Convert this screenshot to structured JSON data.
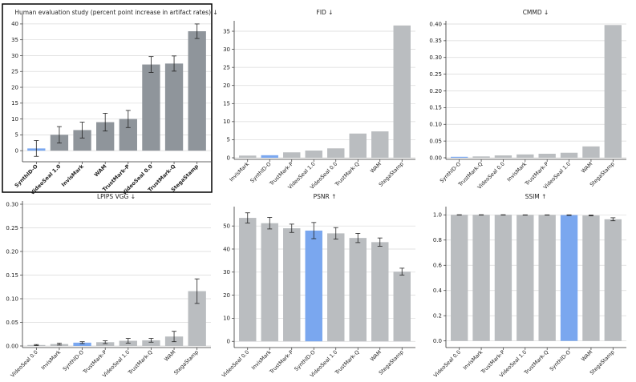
{
  "chart_data": [
    {
      "type": "bar",
      "title": "Human evaluation study (percent point increase in artifact rates) ↓",
      "categories": [
        "SynthID-O",
        "VideoSeal 1.0",
        "InvisMark",
        "WAM",
        "TrustMark-P",
        "VideoSeal 0.0",
        "TrustMark-Q",
        "StegaStamp"
      ],
      "values": [
        0.7,
        5.0,
        6.5,
        9.0,
        10.0,
        27.2,
        27.5,
        37.7
      ],
      "errors": [
        2.5,
        2.6,
        2.5,
        2.8,
        2.7,
        2.5,
        2.4,
        2.3
      ],
      "ylim": [
        -3,
        42
      ],
      "yticks": [
        0,
        5,
        10,
        15,
        20,
        25,
        30,
        35,
        40
      ],
      "highlight": "SynthID-O",
      "highlight_color": "#7aa7ef",
      "bar_color": "#8f959b",
      "grid": true,
      "framed": true,
      "bold_xticks": true
    },
    {
      "type": "bar",
      "title": "FID ↓",
      "categories": [
        "InvisMark",
        "SynthID-O",
        "TrustMark-P",
        "VideoSeal 1.0",
        "VideoSeal 0.0",
        "TrustMark-Q",
        "WAM",
        "StegaStamp"
      ],
      "values": [
        0.6,
        0.7,
        1.5,
        2.0,
        2.6,
        6.7,
        7.3,
        36.6
      ],
      "ylim": [
        0,
        37
      ],
      "yticks": [
        0,
        5,
        10,
        15,
        20,
        25,
        30,
        35
      ],
      "highlight": "SynthID-O",
      "highlight_color": "#7aa7ef",
      "bar_color": "#babdc0",
      "grid": true
    },
    {
      "type": "bar",
      "title": "CMMD ↓",
      "categories": [
        "SynthID-O",
        "TrustMark-Q",
        "VideoSeal 0.0",
        "InvisMark",
        "TrustMark-P",
        "VideoSeal 1.0",
        "WAM",
        "StegaStamp"
      ],
      "values": [
        0.002,
        0.004,
        0.007,
        0.01,
        0.012,
        0.015,
        0.034,
        0.397
      ],
      "ylim": [
        0,
        0.4
      ],
      "yticks": [
        0.0,
        0.05,
        0.1,
        0.15,
        0.2,
        0.25,
        0.3,
        0.35,
        0.4
      ],
      "ytick_labels": [
        "0.00",
        "0.05",
        "0.10",
        "0.15",
        "0.20",
        "0.25",
        "0.30",
        "0.35",
        "0.40"
      ],
      "highlight": "SynthID-O",
      "highlight_color": "#7aa7ef",
      "bar_color": "#babdc0",
      "grid": true
    },
    {
      "type": "bar",
      "title": "LPIPS VGG ↓",
      "categories": [
        "VideoSeal 0.0",
        "InvisMark",
        "SynthID-O",
        "TrustMark-P",
        "VideoSeal 1.0",
        "TrustMark-Q",
        "WAM",
        "StegaStamp"
      ],
      "values": [
        0.002,
        0.004,
        0.007,
        0.008,
        0.011,
        0.012,
        0.02,
        0.116
      ],
      "errors": [
        0.001,
        0.002,
        0.002,
        0.003,
        0.005,
        0.004,
        0.011,
        0.026
      ],
      "ylim": [
        0,
        0.3
      ],
      "yticks": [
        0.0,
        0.05,
        0.1,
        0.15,
        0.2,
        0.25,
        0.3
      ],
      "ytick_labels": [
        "0.00",
        "0.05",
        "0.10",
        "0.15",
        "0.20",
        "0.25",
        "0.30"
      ],
      "highlight": "SynthID-O",
      "highlight_color": "#7aa7ef",
      "bar_color": "#babdc0",
      "grid": true
    },
    {
      "type": "bar",
      "title": "PSNR ↑",
      "categories": [
        "VideoSeal 0.0",
        "InvisMark",
        "TrustMark-P",
        "SynthID-O",
        "VideoSeal 1.0",
        "TrustMark-Q",
        "WAM",
        "StegaStamp"
      ],
      "values": [
        53.5,
        51.2,
        49.0,
        48.0,
        46.8,
        44.8,
        43.0,
        30.2
      ],
      "errors": [
        2.2,
        2.5,
        1.8,
        3.5,
        2.5,
        2.0,
        1.8,
        1.5
      ],
      "ylim": [
        -2,
        57
      ],
      "yticks": [
        0,
        10,
        20,
        30,
        40,
        50
      ],
      "highlight": "SynthID-O",
      "highlight_color": "#7aa7ef",
      "bar_color": "#babdc0",
      "grid": true
    },
    {
      "type": "bar",
      "title": "SSIM ↑",
      "categories": [
        "VideoSeal 0.0",
        "InvisMark",
        "TrustMark-P",
        "VideoSeal 1.0",
        "TrustMark-Q",
        "SynthID-O",
        "WAM",
        "StegaStamp"
      ],
      "values": [
        1.0,
        1.0,
        1.0,
        0.999,
        0.999,
        0.998,
        0.995,
        0.965
      ],
      "errors": [
        0.001,
        0.001,
        0.001,
        0.001,
        0.001,
        0.002,
        0.003,
        0.012
      ],
      "ylim": [
        -0.04,
        1.04
      ],
      "yticks": [
        0.0,
        0.2,
        0.4,
        0.6,
        0.8,
        1.0
      ],
      "ytick_labels": [
        "0.0",
        "0.2",
        "0.4",
        "0.6",
        "0.8",
        "1.0"
      ],
      "highlight": "SynthID-O",
      "highlight_color": "#7aa7ef",
      "bar_color": "#babdc0",
      "grid": true
    }
  ]
}
